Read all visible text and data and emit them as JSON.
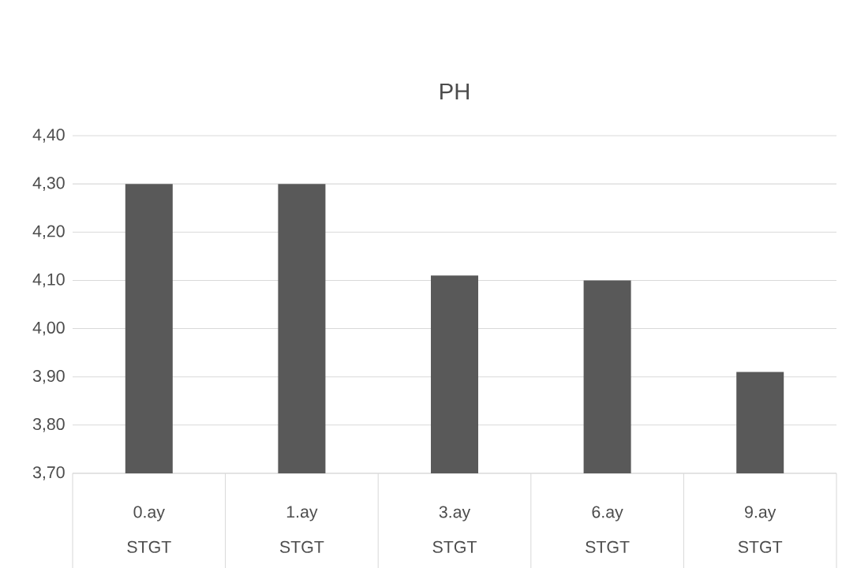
{
  "chart_data": {
    "type": "bar",
    "title": "PH",
    "categories": [
      "0.ay",
      "1.ay",
      "3.ay",
      "6.ay",
      "9.ay"
    ],
    "values": [
      4.3,
      4.3,
      4.11,
      4.1,
      3.91
    ],
    "color": "#595959",
    "ylim": [
      3.7,
      4.4
    ],
    "yticks": [
      {
        "value": 3.7,
        "label": "3,70"
      },
      {
        "value": 3.8,
        "label": "3,80"
      },
      {
        "value": 3.9,
        "label": "3,90"
      },
      {
        "value": 4.0,
        "label": "4,00"
      },
      {
        "value": 4.1,
        "label": "4,10"
      },
      {
        "value": 4.2,
        "label": "4,20"
      },
      {
        "value": 4.3,
        "label": "4,30"
      },
      {
        "value": 4.4,
        "label": "4,40"
      }
    ],
    "annotations": [
      "STGT",
      "STGT",
      "STGT",
      "STGT",
      "STGT"
    ],
    "grid": "y"
  }
}
